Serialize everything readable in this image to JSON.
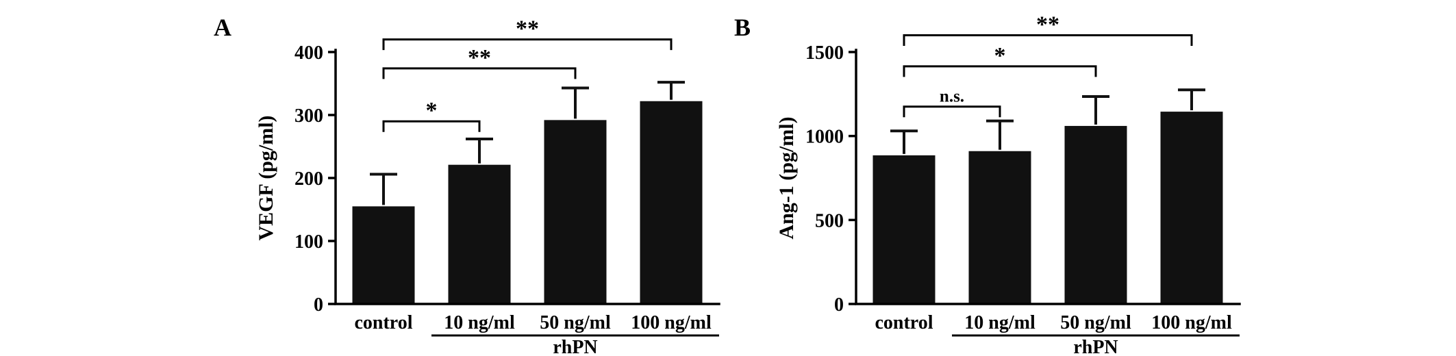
{
  "figure": {
    "background": "#ffffff",
    "panel_count": 2
  },
  "chart_data": [
    {
      "type": "bar",
      "panel_label": "A",
      "title": "",
      "xlabel": "",
      "ylabel": "VEGF (pg/ml)",
      "categories": [
        "control",
        "10 ng/ml",
        "50 ng/ml",
        "100 ng/ml"
      ],
      "values": [
        155,
        221,
        292,
        322
      ],
      "errors_plus": [
        51,
        41,
        51,
        30
      ],
      "ylim": [
        0,
        400
      ],
      "yticks": [
        0,
        100,
        200,
        300,
        400
      ],
      "bar_color": "#111111",
      "group_label": "rhPN",
      "group_members": [
        "10 ng/ml",
        "50 ng/ml",
        "100 ng/ml"
      ],
      "significance": [
        {
          "from": "control",
          "to": "10 ng/ml",
          "label": "*",
          "bracket_y": 290
        },
        {
          "from": "control",
          "to": "50 ng/ml",
          "label": "**",
          "bracket_y": 374
        },
        {
          "from": "control",
          "to": "100 ng/ml",
          "label": "**",
          "bracket_y": 420
        }
      ]
    },
    {
      "type": "bar",
      "panel_label": "B",
      "title": "",
      "xlabel": "",
      "ylabel": "Ang-1 (pg/ml)",
      "categories": [
        "control",
        "10 ng/ml",
        "50 ng/ml",
        "100 ng/ml"
      ],
      "values": [
        885,
        910,
        1060,
        1145
      ],
      "errors_plus": [
        145,
        180,
        175,
        130
      ],
      "ylim": [
        0,
        1500
      ],
      "yticks": [
        0,
        500,
        1000,
        1500
      ],
      "bar_color": "#111111",
      "group_label": "rhPN",
      "group_members": [
        "10 ng/ml",
        "50 ng/ml",
        "100 ng/ml"
      ],
      "significance": [
        {
          "from": "control",
          "to": "10 ng/ml",
          "label": "n.s.",
          "bracket_y": 1175
        },
        {
          "from": "control",
          "to": "50 ng/ml",
          "label": "*",
          "bracket_y": 1415
        },
        {
          "from": "control",
          "to": "100 ng/ml",
          "label": "**",
          "bracket_y": 1600
        }
      ]
    }
  ]
}
